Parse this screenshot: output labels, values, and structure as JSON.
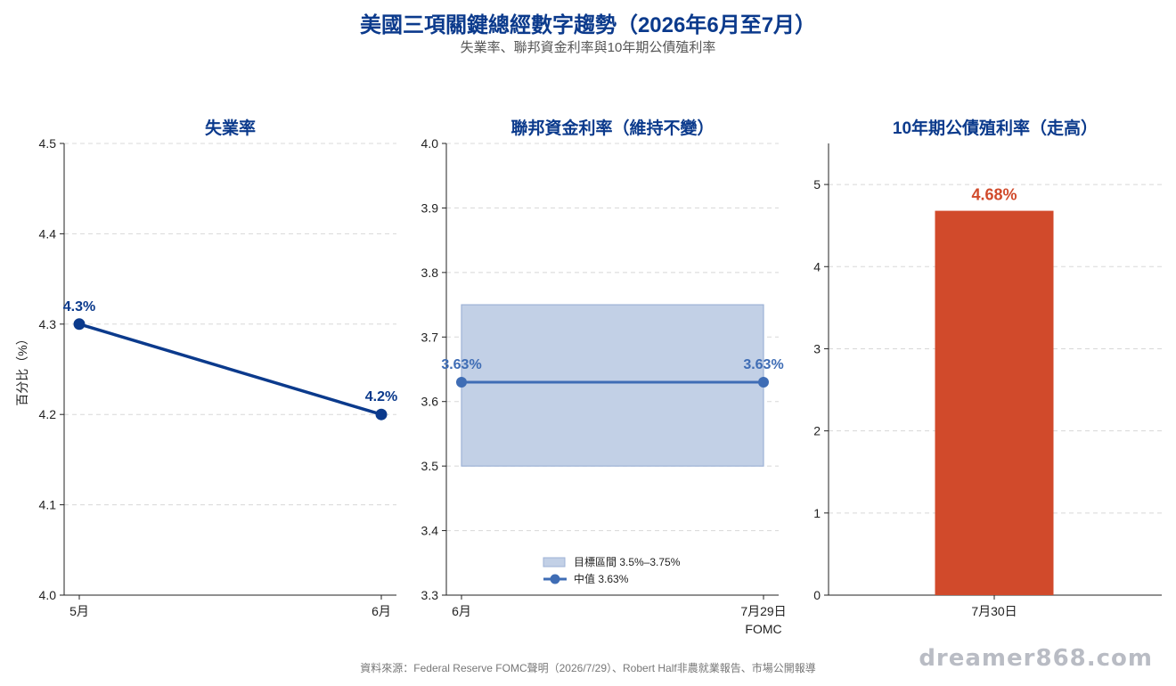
{
  "header": {
    "title": "美國三項關鍵總經數字趨勢（2026年6月至7月）",
    "subtitle": "失業率、聯邦資金利率與10年期公債殖利率"
  },
  "footer": {
    "source": "資料來源：Federal Reserve FOMC聲明（2026/7/29）、Robert Half非農就業報告、市場公開報導",
    "watermark": "dreamer868.com"
  },
  "colors": {
    "title": "#0b3a8c",
    "unemployment_line": "#0b3a8c",
    "fed_band": "#c2d0e6",
    "fed_line": "#3f6db5",
    "yield_bar": "#d14a2b",
    "grid": "#d8d8d8"
  },
  "chart_data": [
    {
      "type": "line",
      "title": "失業率",
      "ylabel": "百分比（%）",
      "categories": [
        "5月",
        "6月"
      ],
      "values": [
        4.3,
        4.2
      ],
      "data_labels": [
        "4.3%",
        "4.2%"
      ],
      "ylim": [
        4.0,
        4.5
      ],
      "yticks": [
        "4.0",
        "4.1",
        "4.2",
        "4.3",
        "4.4",
        "4.5"
      ],
      "grid": true
    },
    {
      "type": "line",
      "title": "聯邦資金利率（維持不變）",
      "categories": [
        "6月",
        "7月29日\nFOMC"
      ],
      "series": [
        {
          "name": "目標區間 3.5%–3.75%",
          "kind": "band",
          "low": 3.5,
          "high": 3.75
        },
        {
          "name": "中值 3.63%",
          "kind": "line",
          "values": [
            3.63,
            3.63
          ]
        }
      ],
      "data_labels": [
        "3.63%",
        "3.63%"
      ],
      "ylim": [
        3.3,
        4.0
      ],
      "yticks": [
        "3.3",
        "3.4",
        "3.5",
        "3.6",
        "3.7",
        "3.8",
        "3.9",
        "4.0"
      ],
      "legend_position": "bottom-center",
      "grid": true
    },
    {
      "type": "bar",
      "title": "10年期公債殖利率（走高）",
      "categories": [
        "7月30日"
      ],
      "values": [
        4.68
      ],
      "data_labels": [
        "4.68%"
      ],
      "ylim": [
        0,
        5.5
      ],
      "yticks": [
        "0",
        "1",
        "2",
        "3",
        "4",
        "5"
      ],
      "grid": true
    }
  ]
}
